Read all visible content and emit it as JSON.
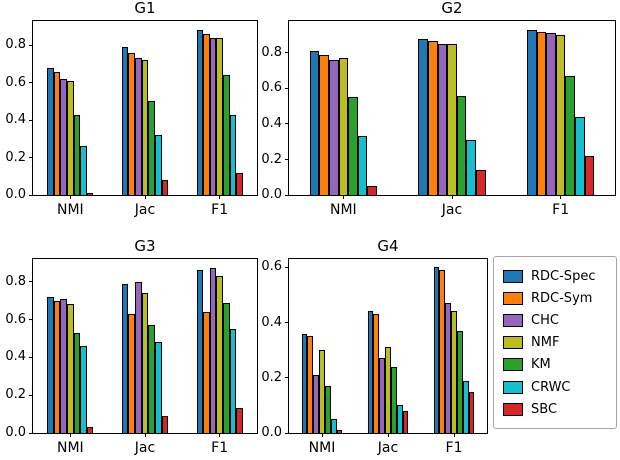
{
  "figure_title": "",
  "legend": {
    "entries": [
      {
        "label": "RDC-Spec",
        "color": "#1f77b4"
      },
      {
        "label": "RDC-Sym",
        "color": "#ff7f0e"
      },
      {
        "label": "CHC",
        "color": "#9467bd"
      },
      {
        "label": "NMF",
        "color": "#bcbd22"
      },
      {
        "label": "KM",
        "color": "#2ca02c"
      },
      {
        "label": "CRWC",
        "color": "#17becf"
      },
      {
        "label": "SBC",
        "color": "#d62728"
      }
    ]
  },
  "chart_data": [
    {
      "type": "bar",
      "title": "G1",
      "categories": [
        "NMI",
        "Jac",
        "F1"
      ],
      "yticks": [
        0.0,
        0.2,
        0.4,
        0.6,
        0.8
      ],
      "ylim": [
        0,
        0.93
      ],
      "series": [
        {
          "name": "RDC-Spec",
          "color": "#1f77b4",
          "values": [
            0.68,
            0.79,
            0.88
          ]
        },
        {
          "name": "RDC-Sym",
          "color": "#ff7f0e",
          "values": [
            0.66,
            0.76,
            0.86
          ]
        },
        {
          "name": "CHC",
          "color": "#9467bd",
          "values": [
            0.62,
            0.73,
            0.84
          ]
        },
        {
          "name": "NMF",
          "color": "#bcbd22",
          "values": [
            0.61,
            0.72,
            0.84
          ]
        },
        {
          "name": "KM",
          "color": "#2ca02c",
          "values": [
            0.43,
            0.5,
            0.64
          ]
        },
        {
          "name": "CRWC",
          "color": "#17becf",
          "values": [
            0.26,
            0.32,
            0.43
          ]
        },
        {
          "name": "SBC",
          "color": "#d62728",
          "values": [
            0.01,
            0.08,
            0.12
          ]
        }
      ]
    },
    {
      "type": "bar",
      "title": "G2",
      "categories": [
        "NMI",
        "Jac",
        "F1"
      ],
      "yticks": [
        0.0,
        0.2,
        0.4,
        0.6,
        0.8
      ],
      "ylim": [
        0,
        0.98
      ],
      "series": [
        {
          "name": "RDC-Spec",
          "color": "#1f77b4",
          "values": [
            0.81,
            0.88,
            0.93
          ]
        },
        {
          "name": "RDC-Sym",
          "color": "#ff7f0e",
          "values": [
            0.79,
            0.87,
            0.92
          ]
        },
        {
          "name": "CHC",
          "color": "#9467bd",
          "values": [
            0.76,
            0.85,
            0.91
          ]
        },
        {
          "name": "NMF",
          "color": "#bcbd22",
          "values": [
            0.77,
            0.85,
            0.9
          ]
        },
        {
          "name": "KM",
          "color": "#2ca02c",
          "values": [
            0.55,
            0.56,
            0.67
          ]
        },
        {
          "name": "CRWC",
          "color": "#17becf",
          "values": [
            0.33,
            0.31,
            0.44
          ]
        },
        {
          "name": "SBC",
          "color": "#d62728",
          "values": [
            0.05,
            0.14,
            0.22
          ]
        }
      ]
    },
    {
      "type": "bar",
      "title": "G3",
      "categories": [
        "NMI",
        "Jac",
        "F1"
      ],
      "yticks": [
        0.0,
        0.2,
        0.4,
        0.6,
        0.8
      ],
      "ylim": [
        0,
        0.92
      ],
      "series": [
        {
          "name": "RDC-Spec",
          "color": "#1f77b4",
          "values": [
            0.72,
            0.79,
            0.86
          ]
        },
        {
          "name": "RDC-Sym",
          "color": "#ff7f0e",
          "values": [
            0.7,
            0.63,
            0.64
          ]
        },
        {
          "name": "CHC",
          "color": "#9467bd",
          "values": [
            0.71,
            0.8,
            0.87
          ]
        },
        {
          "name": "NMF",
          "color": "#bcbd22",
          "values": [
            0.68,
            0.74,
            0.83
          ]
        },
        {
          "name": "KM",
          "color": "#2ca02c",
          "values": [
            0.53,
            0.57,
            0.69
          ]
        },
        {
          "name": "CRWC",
          "color": "#17becf",
          "values": [
            0.46,
            0.48,
            0.55
          ]
        },
        {
          "name": "SBC",
          "color": "#d62728",
          "values": [
            0.03,
            0.09,
            0.13
          ]
        }
      ]
    },
    {
      "type": "bar",
      "title": "G4",
      "categories": [
        "NMI",
        "Jac",
        "F1"
      ],
      "yticks": [
        0.0,
        0.2,
        0.4,
        0.6
      ],
      "ylim": [
        0,
        0.63
      ],
      "series": [
        {
          "name": "RDC-Spec",
          "color": "#1f77b4",
          "values": [
            0.36,
            0.44,
            0.6
          ]
        },
        {
          "name": "RDC-Sym",
          "color": "#ff7f0e",
          "values": [
            0.35,
            0.43,
            0.59
          ]
        },
        {
          "name": "CHC",
          "color": "#9467bd",
          "values": [
            0.21,
            0.27,
            0.47
          ]
        },
        {
          "name": "NMF",
          "color": "#bcbd22",
          "values": [
            0.3,
            0.31,
            0.44
          ]
        },
        {
          "name": "KM",
          "color": "#2ca02c",
          "values": [
            0.17,
            0.24,
            0.37
          ]
        },
        {
          "name": "CRWC",
          "color": "#17becf",
          "values": [
            0.05,
            0.1,
            0.19
          ]
        },
        {
          "name": "SBC",
          "color": "#d62728",
          "values": [
            0.01,
            0.08,
            0.15
          ]
        }
      ]
    }
  ]
}
